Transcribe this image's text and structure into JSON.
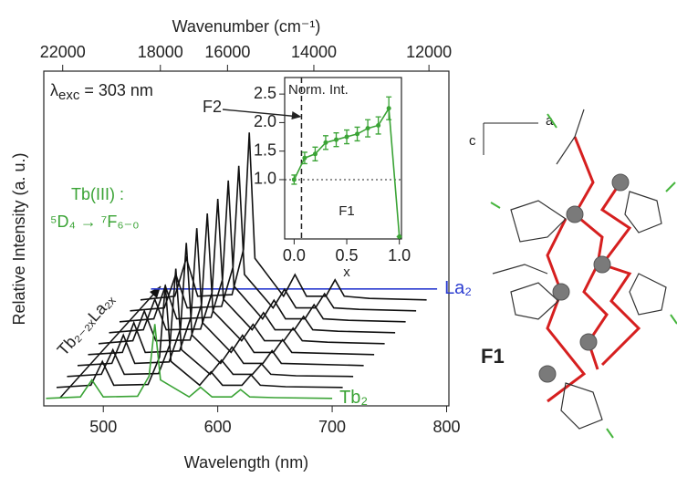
{
  "chart_data": [
    {
      "type": "line",
      "xlabel": "Wavelength (nm)",
      "ylabel": "Relative Intensity (a. u.)",
      "x2label": "Wavenumber (cm⁻¹)",
      "excitation": {
        "symbol": "λ",
        "sub": "exc",
        "text": " = 303 nm"
      },
      "tb_label": "Tb(III) :",
      "transition": "⁵D₄ → ⁷F₆₋₀",
      "composition": "Tb₂₋₂ₓLa₂ₓ",
      "x": [
        450,
        480,
        490,
        500,
        530,
        540,
        545,
        550,
        575,
        585,
        595,
        612,
        620,
        628,
        650,
        700
      ],
      "xlim": [
        448,
        802
      ],
      "xticks": [
        500,
        600,
        700,
        800
      ],
      "x2lim": [
        22989,
        11710
      ],
      "x2ticks": [
        22000,
        18000,
        16000,
        14000,
        12000
      ],
      "ylim": [
        -0.1,
        4.4
      ],
      "series": [
        {
          "name": "Tb₂",
          "color": "#3aa335",
          "values": [
            0,
            0.02,
            0.25,
            0.02,
            0.03,
            0.3,
            1.0,
            0.25,
            0.02,
            0.15,
            0.02,
            0.02,
            0.12,
            0.02,
            0.01,
            0
          ]
        },
        {
          "color": "#111111",
          "values": [
            0,
            0.03,
            0.35,
            0.03,
            0.04,
            0.41,
            1.38,
            0.35,
            0.03,
            0.21,
            0.03,
            0.03,
            0.17,
            0.03,
            0.01,
            0
          ]
        },
        {
          "color": "#111111",
          "values": [
            0,
            0.03,
            0.36,
            0.03,
            0.04,
            0.44,
            1.45,
            0.36,
            0.03,
            0.22,
            0.03,
            0.03,
            0.17,
            0.03,
            0.01,
            0
          ]
        },
        {
          "color": "#111111",
          "values": [
            0,
            0.03,
            0.41,
            0.03,
            0.05,
            0.5,
            1.65,
            0.41,
            0.03,
            0.25,
            0.03,
            0.03,
            0.2,
            0.03,
            0.02,
            0
          ]
        },
        {
          "color": "#111111",
          "values": [
            0,
            0.03,
            0.43,
            0.03,
            0.05,
            0.51,
            1.7,
            0.43,
            0.03,
            0.26,
            0.03,
            0.03,
            0.2,
            0.03,
            0.02,
            0
          ]
        },
        {
          "color": "#111111",
          "values": [
            0,
            0.04,
            0.44,
            0.04,
            0.05,
            0.53,
            1.75,
            0.44,
            0.04,
            0.26,
            0.04,
            0.04,
            0.21,
            0.04,
            0.02,
            0
          ]
        },
        {
          "color": "#111111",
          "values": [
            0,
            0.04,
            0.45,
            0.04,
            0.05,
            0.54,
            1.8,
            0.45,
            0.04,
            0.27,
            0.04,
            0.04,
            0.22,
            0.04,
            0.02,
            0
          ]
        },
        {
          "color": "#111111",
          "values": [
            0,
            0.04,
            0.48,
            0.04,
            0.06,
            0.57,
            1.9,
            0.48,
            0.04,
            0.29,
            0.04,
            0.04,
            0.23,
            0.04,
            0.02,
            0
          ]
        },
        {
          "color": "#111111",
          "values": [
            0,
            0.04,
            0.49,
            0.04,
            0.06,
            0.59,
            1.95,
            0.49,
            0.04,
            0.29,
            0.04,
            0.04,
            0.23,
            0.04,
            0.02,
            0
          ]
        },
        {
          "color": "#111111",
          "values": [
            0,
            0.05,
            0.56,
            0.05,
            0.07,
            0.68,
            2.25,
            0.56,
            0.05,
            0.34,
            0.05,
            0.05,
            0.27,
            0.05,
            0.02,
            0
          ]
        },
        {
          "name": "La₂",
          "color": "#2a3bd0",
          "values": [
            0,
            0,
            0,
            0,
            0,
            0,
            0,
            0,
            0,
            0,
            0,
            0,
            0,
            0,
            0,
            0
          ]
        }
      ]
    },
    {
      "type": "line",
      "ylabel": "Norm. Int.",
      "xlabel": "x",
      "annotation": "F1",
      "pointer_label": "F2",
      "color": "#3aa335",
      "x": [
        0,
        0.1,
        0.2,
        0.3,
        0.4,
        0.5,
        0.6,
        0.7,
        0.8,
        0.9,
        1.0
      ],
      "values": [
        1.0,
        1.38,
        1.45,
        1.65,
        1.7,
        1.75,
        1.8,
        1.9,
        1.95,
        2.25,
        0.0
      ],
      "errors": [
        0.08,
        0.1,
        0.12,
        0.12,
        0.12,
        0.12,
        0.12,
        0.15,
        0.15,
        0.2,
        0
      ],
      "xlim": [
        -0.09,
        1.02
      ],
      "xticks": [
        {
          "value": 0,
          "label": "0.0"
        },
        {
          "value": 0.5,
          "label": "0.5"
        },
        {
          "value": 1,
          "label": "1.0"
        }
      ],
      "ylim": [
        -0.04,
        2.79
      ],
      "yticks": [
        {
          "value": 1,
          "label": "1.0"
        },
        {
          "value": 1.5,
          "label": "1.5"
        },
        {
          "value": 2,
          "label": "2.0"
        },
        {
          "value": 2.5,
          "label": "2.5"
        }
      ],
      "vline": 0.07,
      "hline": 1.0
    }
  ],
  "structure": {
    "label": "F1",
    "axis_a": "a",
    "axis_c": "c"
  }
}
